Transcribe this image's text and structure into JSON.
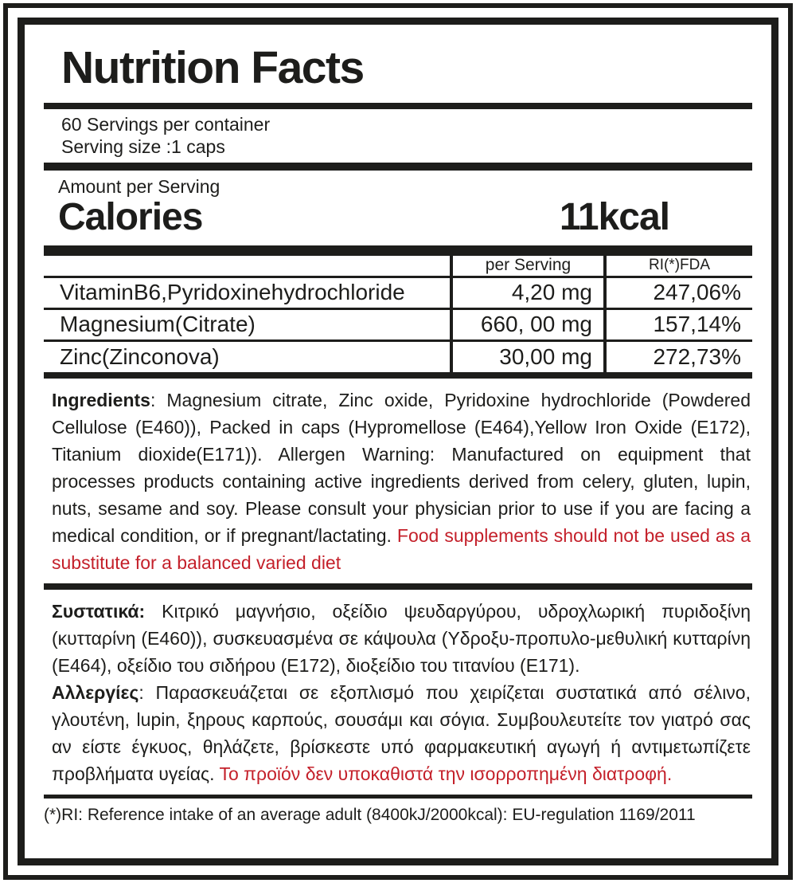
{
  "label": {
    "title": "Nutrition Facts",
    "servings_per_container": "60 Servings per container",
    "serving_size": "Serving size :1 caps",
    "amount_per_serving": "Amount per Serving",
    "calories_label": "Calories",
    "calories_value": "11kcal",
    "table": {
      "columns": {
        "per_serving": "per Serving",
        "ri_fda": "RI(*)FDA"
      },
      "rows": [
        {
          "name": "VitaminB6,Pyridoxinehydrochloride",
          "amount": "4,20 mg",
          "ri": "247,06%"
        },
        {
          "name": "Magnesium(Citrate)",
          "amount": "660, 00 mg",
          "ri": "157,14%"
        },
        {
          "name": "Zinc(Zinconova)",
          "amount": "30,00 mg",
          "ri": "272,73%"
        }
      ]
    },
    "ingredients_en": {
      "heading": "Ingredients",
      "body": ": Magnesium citrate, Zinc oxide, Pyridoxine hydrochloride (Powdered Cellulose (E460)), Packed in caps (Hypromellose (E464),Yellow Iron Oxide (E172), Titanium dioxide(E171)). Allergen Warning: Manufactured on equipment that processes products containing active ingredients derived from celery, gluten, lupin, nuts, sesame and soy. Please consult your physician prior to use if you are facing a medical condition, or if pregnant/lactating. ",
      "warning_red": "Food supplements should not be used as a substitute for a balanced varied diet"
    },
    "ingredients_gr": {
      "heading": "Συστατικά:",
      "body": " Κιτρικό μαγνήσιο, οξείδιο ψευδαργύρου, υδροχλωρική πυριδοξίνη (κυτταρίνη (E460)), συσκευασμένα σε κάψουλα (Υδροξυ-προπυλο-μεθυλική κυτταρίνη (E464), οξείδιο του σιδήρου (E172), διοξείδιο του τιτανίου (E171).",
      "allergy_heading": "Αλλεργίες",
      "allergy_body": ": Παρασκευάζεται σε εξοπλισμό που χειρίζεται συστατικά από σέλινο, γλουτένη, lupin, ξηρους καρπούς, σουσάμι και σόγια. Συμβουλευτείτε τον γιατρό σας αν είστε έγκυος, θηλάζετε, βρίσκεστε υπό φαρμακευτική αγωγή ή αντιμετωπίζετε προβλήματα υγείας. ",
      "warning_red": "Το προϊόν δεν υποκαθιστά την ισορροπημένη διατροφή."
    },
    "footnote": "(*)RI: Reference intake of an average adult (8400kJ/2000kcal): EU-regulation 1169/2011",
    "colors": {
      "text_black": "#1d1d1b",
      "warning_red": "#c4202a"
    }
  }
}
